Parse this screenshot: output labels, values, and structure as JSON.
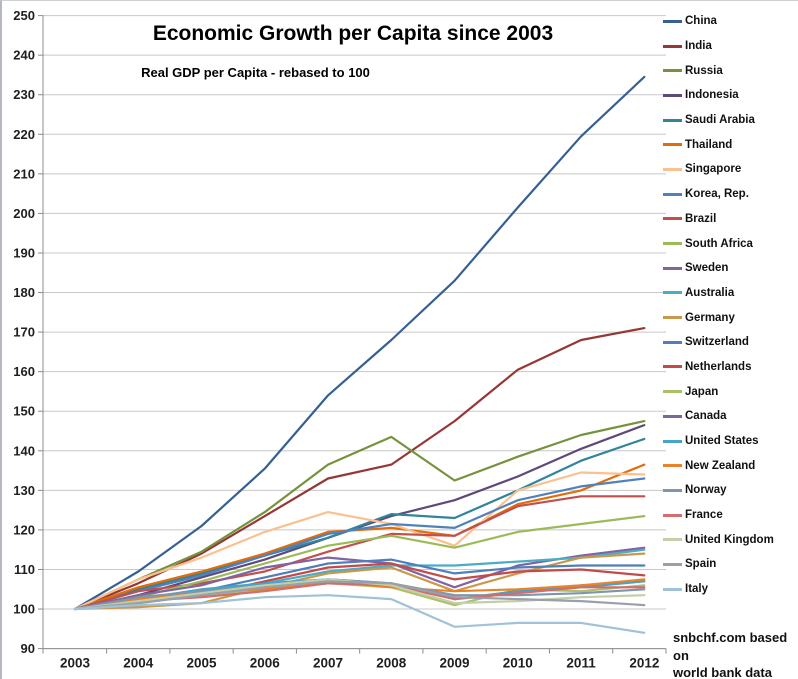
{
  "chart_data": {
    "type": "line",
    "title": "Economic Growth per Capita since 2003",
    "subtitle": "Real GDP per Capita - rebased to 100",
    "x": [
      "2003",
      "2004",
      "2005",
      "2006",
      "2007",
      "2008",
      "2009",
      "2010",
      "2011",
      "2012"
    ],
    "y_ticks": [
      90,
      100,
      110,
      120,
      130,
      140,
      150,
      160,
      170,
      180,
      190,
      200,
      210,
      220,
      230,
      240,
      250
    ],
    "ylim": [
      90,
      250
    ],
    "grid": true,
    "legend_position": "right",
    "axis_color": "#8c8c8c",
    "grid_color": "#c8c8c8",
    "series": [
      {
        "name": "China",
        "color": "#366092",
        "values": [
          100,
          109.5,
          121,
          135.5,
          154,
          168,
          183,
          201.5,
          219.5,
          234.5
        ]
      },
      {
        "name": "India",
        "color": "#953735",
        "values": [
          100,
          106.5,
          114,
          123.5,
          133,
          136.5,
          147.5,
          160.5,
          168,
          171
        ]
      },
      {
        "name": "Russia",
        "color": "#76923C",
        "values": [
          100,
          107.5,
          114.5,
          124.5,
          136.5,
          143.5,
          132.5,
          138.5,
          144,
          147.5
        ]
      },
      {
        "name": "Indonesia",
        "color": "#5F497A",
        "values": [
          100,
          103.5,
          108,
          112.5,
          118,
          123.5,
          127.5,
          133.5,
          140.5,
          146.5
        ]
      },
      {
        "name": "Saudi Arabia",
        "color": "#31849B",
        "values": [
          100,
          105,
          109,
          113.5,
          118,
          124,
          123,
          130,
          137.5,
          143
        ]
      },
      {
        "name": "Thailand",
        "color": "#E36C0A",
        "values": [
          100,
          105.5,
          109.5,
          114,
          119.5,
          120.5,
          118.5,
          126.5,
          130,
          136.5
        ]
      },
      {
        "name": "Singapore",
        "color": "#FAC090",
        "values": [
          100,
          107.5,
          113,
          119.5,
          124.5,
          121.5,
          116,
          130,
          134.5,
          134
        ]
      },
      {
        "name": "Korea, Rep.",
        "color": "#4F81BD",
        "values": [
          100,
          104.5,
          108.5,
          113.5,
          119,
          121.5,
          120.5,
          127.5,
          131,
          133
        ]
      },
      {
        "name": "Brazil",
        "color": "#C0504D",
        "values": [
          100,
          104.5,
          106.5,
          109.5,
          114.5,
          119,
          118.5,
          126,
          128.5,
          128.5
        ]
      },
      {
        "name": "South Africa",
        "color": "#9BBB59",
        "values": [
          100,
          103,
          107,
          111.5,
          116,
          118.5,
          115.5,
          119.5,
          121.5,
          123.5
        ]
      },
      {
        "name": "Sweden",
        "color": "#8064A2",
        "values": [
          100,
          103.5,
          106,
          110.5,
          113,
          111.5,
          105.5,
          111,
          113.5,
          115.5
        ]
      },
      {
        "name": "Australia",
        "color": "#4BACC6",
        "values": [
          100,
          102.5,
          104.5,
          106.5,
          109.5,
          111,
          111,
          112,
          113,
          115
        ]
      },
      {
        "name": "Germany",
        "color": "#C9984A",
        "values": [
          100,
          100.5,
          101.5,
          105.5,
          109,
          110.5,
          104.5,
          109,
          113,
          114
        ]
      },
      {
        "name": "Switzerland",
        "color": "#4E7EBB",
        "values": [
          100,
          102,
          104.5,
          108,
          111.5,
          112.5,
          109,
          110.5,
          111,
          111
        ]
      },
      {
        "name": "Netherlands",
        "color": "#C34A46",
        "values": [
          100,
          101.5,
          103.5,
          107,
          110.5,
          111.5,
          107.5,
          109.5,
          110,
          108.5
        ]
      },
      {
        "name": "Japan",
        "color": "#AAC168",
        "values": [
          100,
          102,
          103.5,
          105,
          106.5,
          105.5,
          101,
          105,
          104.5,
          106
        ]
      },
      {
        "name": "Canada",
        "color": "#7A6699",
        "values": [
          100,
          102,
          104,
          106,
          107,
          106.5,
          102.5,
          104.5,
          106,
          107
        ]
      },
      {
        "name": "United States",
        "color": "#44A4C9",
        "values": [
          100,
          102.5,
          105,
          106.5,
          107.5,
          106.5,
          102.5,
          104.5,
          105.5,
          107
        ]
      },
      {
        "name": "New Zealand",
        "color": "#E98325",
        "values": [
          100,
          102.5,
          104.5,
          105,
          107,
          105.5,
          104.5,
          105,
          106,
          107.5
        ]
      },
      {
        "name": "Norway",
        "color": "#8095AD",
        "values": [
          100,
          103,
          104.5,
          106,
          107.5,
          106.5,
          103.5,
          103.5,
          104,
          105
        ]
      },
      {
        "name": "France",
        "color": "#D26D6B",
        "values": [
          100,
          102,
          103,
          104.5,
          106.5,
          106,
          102.5,
          104,
          105.5,
          105.5
        ]
      },
      {
        "name": "United Kingdom",
        "color": "#C3CFA7",
        "values": [
          100,
          102,
          104,
          106,
          107.5,
          106,
          101.5,
          102,
          103,
          103.5
        ]
      },
      {
        "name": "Spain",
        "color": "#98A0AC",
        "values": [
          100,
          101.5,
          103.5,
          105.5,
          107,
          106.5,
          103,
          102.5,
          102,
          101
        ]
      },
      {
        "name": "Italy",
        "color": "#9FC2D8",
        "values": [
          100,
          101,
          101.5,
          103,
          103.5,
          102.5,
          95.5,
          96.5,
          96.5,
          94
        ]
      }
    ]
  },
  "attribution": {
    "line1": "snbchf.com based on",
    "line2": "world bank data"
  }
}
